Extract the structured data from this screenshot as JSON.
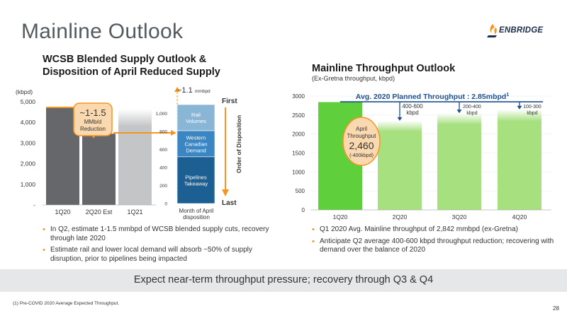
{
  "slide": {
    "title": "Mainline Outlook",
    "logo_text": "ENBRIDGE",
    "banner": "Expect near-term throughput pressure; recovery through Q3 & Q4",
    "footnote": "(1) Pre-COVID 2020 Average Expected Throughput.",
    "page_number": "28"
  },
  "colors": {
    "dark_gray": "#65676a",
    "light_gray": "#c4c5c7",
    "orange": "#f7941d",
    "callout_fill": "#fbd9b0",
    "rail": "#8ab6d6",
    "western": "#3b86c2",
    "pipelines": "#1b5f93",
    "green_bright": "#5fcf3b",
    "green_light": "#a7e07f",
    "navy": "#1d4f91"
  },
  "left": {
    "title_line1": "WCSB Blended Supply Outlook &",
    "title_line2": "Disposition of April Reduced Supply",
    "unit": "(kbpd)",
    "callout_line1": "~1-1.5",
    "callout_line2": "MMb/d",
    "callout_line3": "Reduction",
    "bullets": [
      "In Q2, estimate 1-1.5 mmbpd of WCSB blended supply cuts, recovery through late 2020",
      "Estimate rail and lower local demand will absorb ~50% of supply disruption, prior to pipelines being impacted"
    ]
  },
  "disposition": {
    "top_label_value": "~1.1",
    "top_label_unit": "mmbpd",
    "first_label": "First",
    "last_label": "Last",
    "axis_title": "Order of Disposition",
    "xlabel_line1": "Month of April",
    "xlabel_line2": "disposition",
    "segments": [
      {
        "name_lines": [
          "Rail",
          "Volumes"
        ]
      },
      {
        "name_lines": [
          "Western",
          "Canadian",
          "Demand"
        ]
      },
      {
        "name_lines": [
          "Pipelines",
          "Takeaway"
        ]
      }
    ]
  },
  "right": {
    "title": "Mainline Throughput Outlook",
    "subtitle": "(Ex-Gretna throughput, kbpd)",
    "planned_label": "Avg. 2020 Planned Throughput : 2.85mbpd",
    "planned_sup": "1",
    "badge_line1": "April",
    "badge_line2": "Throughput",
    "badge_value": "2,460",
    "badge_line4": "(-400kbpd)",
    "reduction_labels": [
      {
        "line1": "400-600",
        "line2": "kbpd"
      },
      {
        "line1": "200-400",
        "line2": "kbpd"
      },
      {
        "line1": "100-300",
        "line2": "kbpd"
      }
    ],
    "bullets": [
      "Q1 2020 Avg. Mainline throughput of 2,842 mmbpd (ex-Gretna)",
      "Anticipate Q2 average 400-600 kbpd throughput reduction; recovering with demand over the balance of 2020"
    ]
  },
  "chart_data": [
    {
      "type": "bar",
      "title": "WCSB Blended Supply Outlook & Disposition of April Reduced Supply",
      "ylabel": "(kbpd)",
      "categories": [
        "1Q20",
        "2Q20 Est",
        "1Q21"
      ],
      "values": [
        4700,
        3450,
        4650
      ],
      "ylim": [
        0,
        5000
      ],
      "yticks": [
        "-",
        "1,000",
        "2,000",
        "3,000",
        "4,000",
        "5,000"
      ],
      "annotation": "~1-1.5 MMb/d Reduction"
    },
    {
      "type": "bar",
      "stacked": true,
      "categories": [
        "Month of April disposition"
      ],
      "series": [
        {
          "name": "Pipelines Takeaway",
          "values": [
            520
          ]
        },
        {
          "name": "Western Canadian Demand",
          "values": [
            290
          ]
        },
        {
          "name": "Rail Volumes",
          "values": [
            290
          ]
        }
      ],
      "ylim": [
        0,
        1100
      ],
      "yticks": [
        "0",
        "200",
        "400",
        "600",
        "800",
        "1,000"
      ],
      "total_label": "~1.1 mmbpd"
    },
    {
      "type": "bar",
      "title": "Mainline Throughput Outlook",
      "subtitle": "(Ex-Gretna throughput, kbpd)",
      "categories": [
        "1Q20",
        "2Q20",
        "3Q20",
        "4Q20"
      ],
      "values": [
        2842,
        2350,
        2550,
        2650
      ],
      "ylim": [
        0,
        3000
      ],
      "yticks": [
        "0",
        "500",
        "1000",
        "1500",
        "2000",
        "2500",
        "3000"
      ],
      "reference_line": {
        "label": "Avg. 2020 Planned Throughput : 2.85mbpd",
        "value": 2850
      }
    }
  ]
}
